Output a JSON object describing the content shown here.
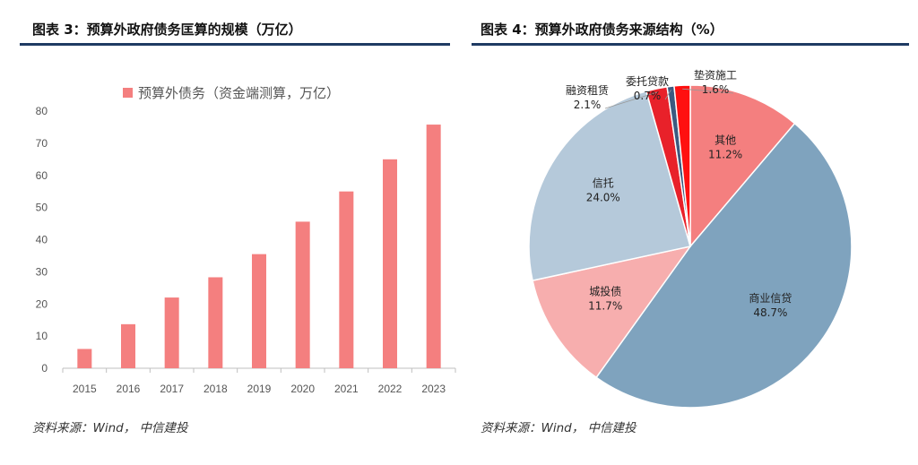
{
  "left_panel": {
    "title": "图表 3：预算外政府债务匡算的规模（万亿）",
    "source": "资料来源：Wind， 中信建投",
    "color": "#f47f7f"
  },
  "right_panel": {
    "title": "图表 4：预算外政府债务来源结构（%）",
    "source": "资料来源：Wind， 中信建投"
  },
  "chart_data": [
    {
      "type": "bar",
      "title": "图表 3：预算外政府债务匡算的规模（万亿）",
      "legend": "预算外债务（资金端测算，万亿）",
      "categories": [
        "2015",
        "2016",
        "2017",
        "2018",
        "2019",
        "2020",
        "2021",
        "2022",
        "2023"
      ],
      "values": [
        6,
        13.7,
        22,
        28.3,
        35.5,
        45.6,
        55,
        65,
        75.8
      ],
      "yticks": [
        "0",
        "10",
        "20",
        "30",
        "40",
        "50",
        "60",
        "70",
        "80"
      ],
      "ylim": [
        0,
        80
      ],
      "xlabel": "",
      "ylabel": "",
      "grid": false
    },
    {
      "type": "pie",
      "title": "图表 4：预算外政府债务来源结构（%）",
      "slices": [
        {
          "name": "其他",
          "value": 11.2,
          "label": "11.2%",
          "color": "#f47f7f"
        },
        {
          "name": "商业信贷",
          "value": 48.7,
          "label": "48.7%",
          "color": "#7fa3be"
        },
        {
          "name": "城投债",
          "value": 11.7,
          "label": "11.7%",
          "color": "#f7aeae"
        },
        {
          "name": "信托",
          "value": 24.0,
          "label": "24.0%",
          "color": "#b5c9da"
        },
        {
          "name": "融资租赁",
          "value": 2.1,
          "label": "2.1%",
          "color": "#e8212a"
        },
        {
          "name": "委托贷款",
          "value": 0.7,
          "label": "0.7%",
          "color": "#3c5a80"
        },
        {
          "name": "垫资施工",
          "value": 1.6,
          "label": "1.6%",
          "color": "#ff1010"
        }
      ]
    }
  ]
}
